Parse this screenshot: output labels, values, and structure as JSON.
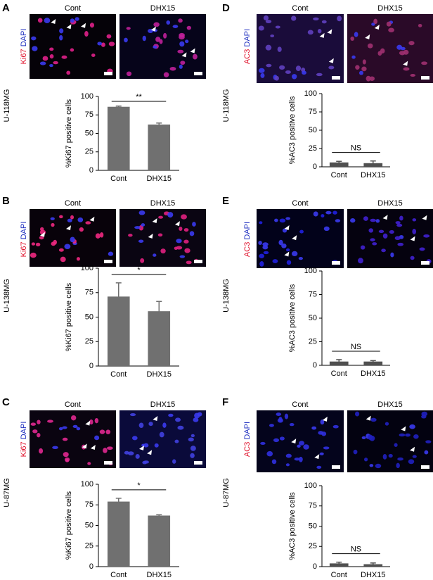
{
  "panels": [
    {
      "letter": "A",
      "cell_line": "U-118MG",
      "stain": "Ki67",
      "counterstain": "DAPI",
      "image_labels": [
        "Cont",
        "DHX15"
      ]
    },
    {
      "letter": "B",
      "cell_line": "U-138MG",
      "stain": "Ki67",
      "counterstain": "DAPI",
      "image_labels": [
        "Cont",
        "DHX15"
      ]
    },
    {
      "letter": "C",
      "cell_line": "U-87MG",
      "stain": "Ki67",
      "counterstain": "DAPI",
      "image_labels": [
        "Cont",
        "DHX15"
      ]
    },
    {
      "letter": "D",
      "cell_line": "U-118MG",
      "stain": "AC3",
      "counterstain": "DAPI",
      "image_labels": [
        "Cont",
        "DHX15"
      ]
    },
    {
      "letter": "E",
      "cell_line": "U-138MG",
      "stain": "AC3",
      "counterstain": "DAPI",
      "image_labels": [
        "Cont",
        "DHX15"
      ]
    },
    {
      "letter": "F",
      "cell_line": "U-87MG",
      "stain": "AC3",
      "counterstain": "DAPI",
      "image_labels": [
        "Cont",
        "DHX15"
      ]
    }
  ],
  "chart_data": [
    {
      "type": "bar",
      "y_label": "%Ki67 positive cells",
      "categories": [
        "Cont",
        "DHX15"
      ],
      "values": [
        86,
        62
      ],
      "errors": [
        1,
        2
      ],
      "color": "#707070",
      "ylim": [
        0,
        100
      ],
      "yticks": [
        0,
        25,
        50,
        75,
        100
      ],
      "annotation": "**"
    },
    {
      "type": "bar",
      "y_label": "%Ki67 positive cells",
      "categories": [
        "Cont",
        "DHX15"
      ],
      "values": [
        71,
        56
      ],
      "errors": [
        14,
        10
      ],
      "color": "#707070",
      "ylim": [
        0,
        100
      ],
      "yticks": [
        0,
        25,
        50,
        75,
        100
      ],
      "annotation": "*"
    },
    {
      "type": "bar",
      "y_label": "%Ki67 positive cells",
      "categories": [
        "Cont",
        "DHX15"
      ],
      "values": [
        79,
        62
      ],
      "errors": [
        4,
        1
      ],
      "color": "#707070",
      "ylim": [
        0,
        100
      ],
      "yticks": [
        0,
        25,
        50,
        75,
        100
      ],
      "annotation": "*"
    },
    {
      "type": "bar",
      "y_label": "%AC3 positive cells",
      "categories": [
        "Cont",
        "DHX15"
      ],
      "values": [
        6,
        5
      ],
      "errors": [
        1.5,
        3
      ],
      "color": "#505050",
      "ylim": [
        0,
        100
      ],
      "yticks": [
        0,
        25,
        50,
        75,
        100
      ],
      "annotation": "NS"
    },
    {
      "type": "bar",
      "y_label": "%AC3 positive cells",
      "categories": [
        "Cont",
        "DHX15"
      ],
      "values": [
        4,
        4
      ],
      "errors": [
        2,
        1
      ],
      "color": "#505050",
      "ylim": [
        0,
        100
      ],
      "yticks": [
        0,
        25,
        50,
        75,
        100
      ],
      "annotation": "NS"
    },
    {
      "type": "bar",
      "y_label": "%AC3 positive cells",
      "categories": [
        "Cont",
        "DHX15"
      ],
      "values": [
        4,
        3
      ],
      "errors": [
        1.5,
        1.5
      ],
      "color": "#505050",
      "ylim": [
        0,
        100
      ],
      "yticks": [
        0,
        25,
        50,
        75,
        100
      ],
      "annotation": "NS"
    }
  ]
}
